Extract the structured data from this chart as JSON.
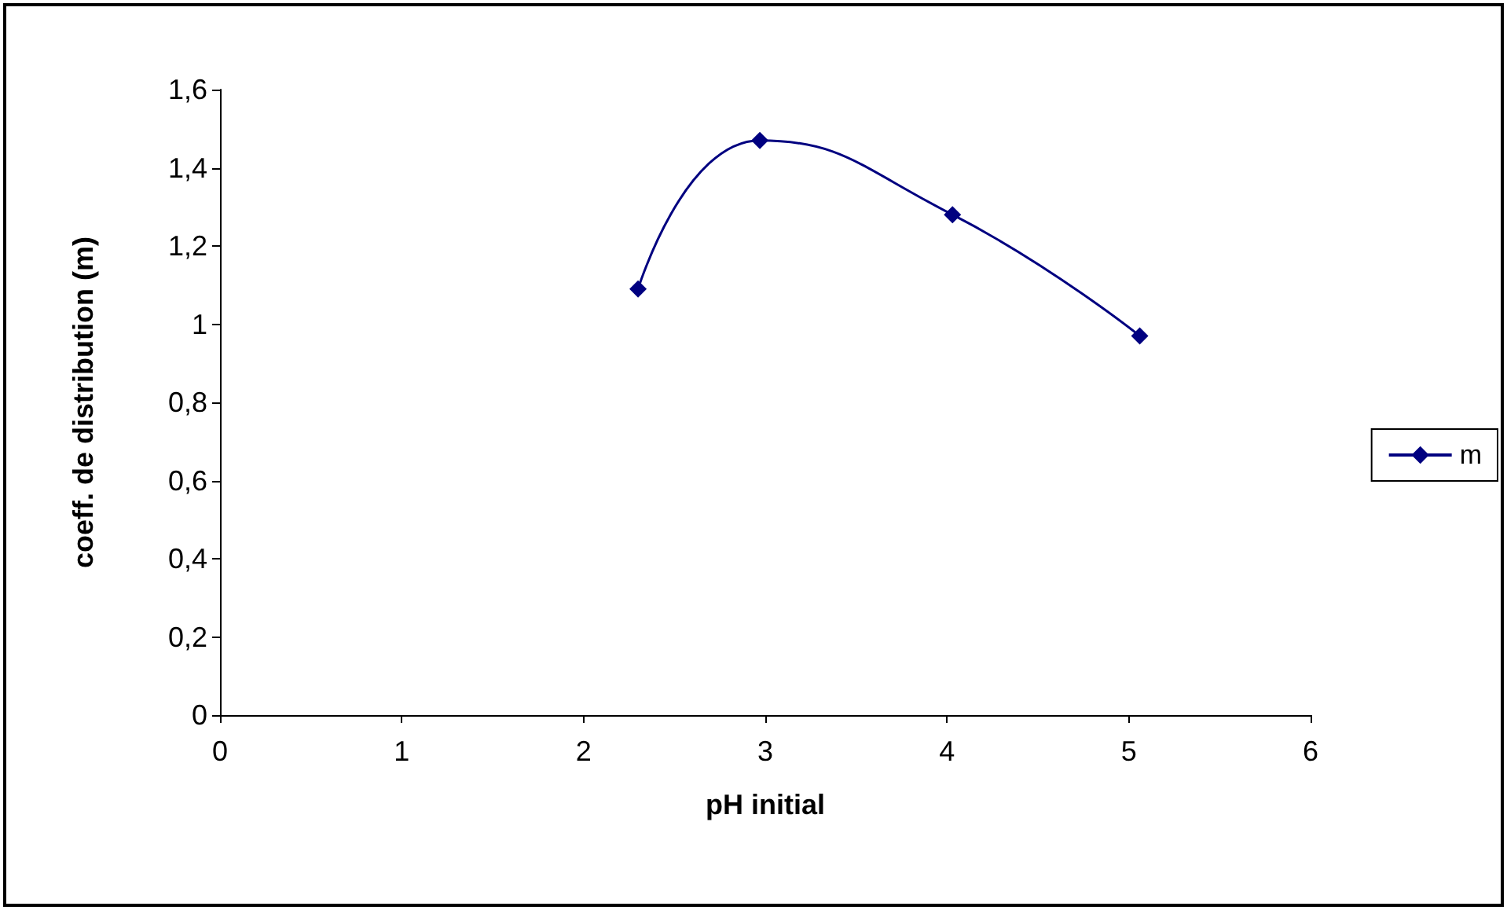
{
  "chart_data": {
    "type": "line",
    "xlabel": "pH initial",
    "ylabel": "coeff. de distribution (m)",
    "x": [
      2.3,
      2.97,
      4.03,
      5.06
    ],
    "series": [
      {
        "name": "m",
        "color": "#000080",
        "values": [
          1.09,
          1.47,
          1.28,
          0.97
        ]
      }
    ],
    "xlim": [
      0,
      6
    ],
    "xticks": [
      0,
      1,
      2,
      3,
      4,
      5,
      6
    ],
    "ylim": [
      0,
      1.6
    ],
    "yticks": [
      0,
      {
        "value": 0.2,
        "label": "0,2"
      },
      {
        "value": 0.4,
        "label": "0,4"
      },
      {
        "value": 0.6,
        "label": "0,6"
      },
      {
        "value": 0.8,
        "label": "0,8"
      },
      1,
      {
        "value": 1.2,
        "label": "1,2"
      },
      {
        "value": 1.4,
        "label": "1,4"
      },
      {
        "value": 1.6,
        "label": "1,6"
      }
    ],
    "marker": "diamond",
    "line_style": "solid",
    "grid": false,
    "legend": "right"
  }
}
